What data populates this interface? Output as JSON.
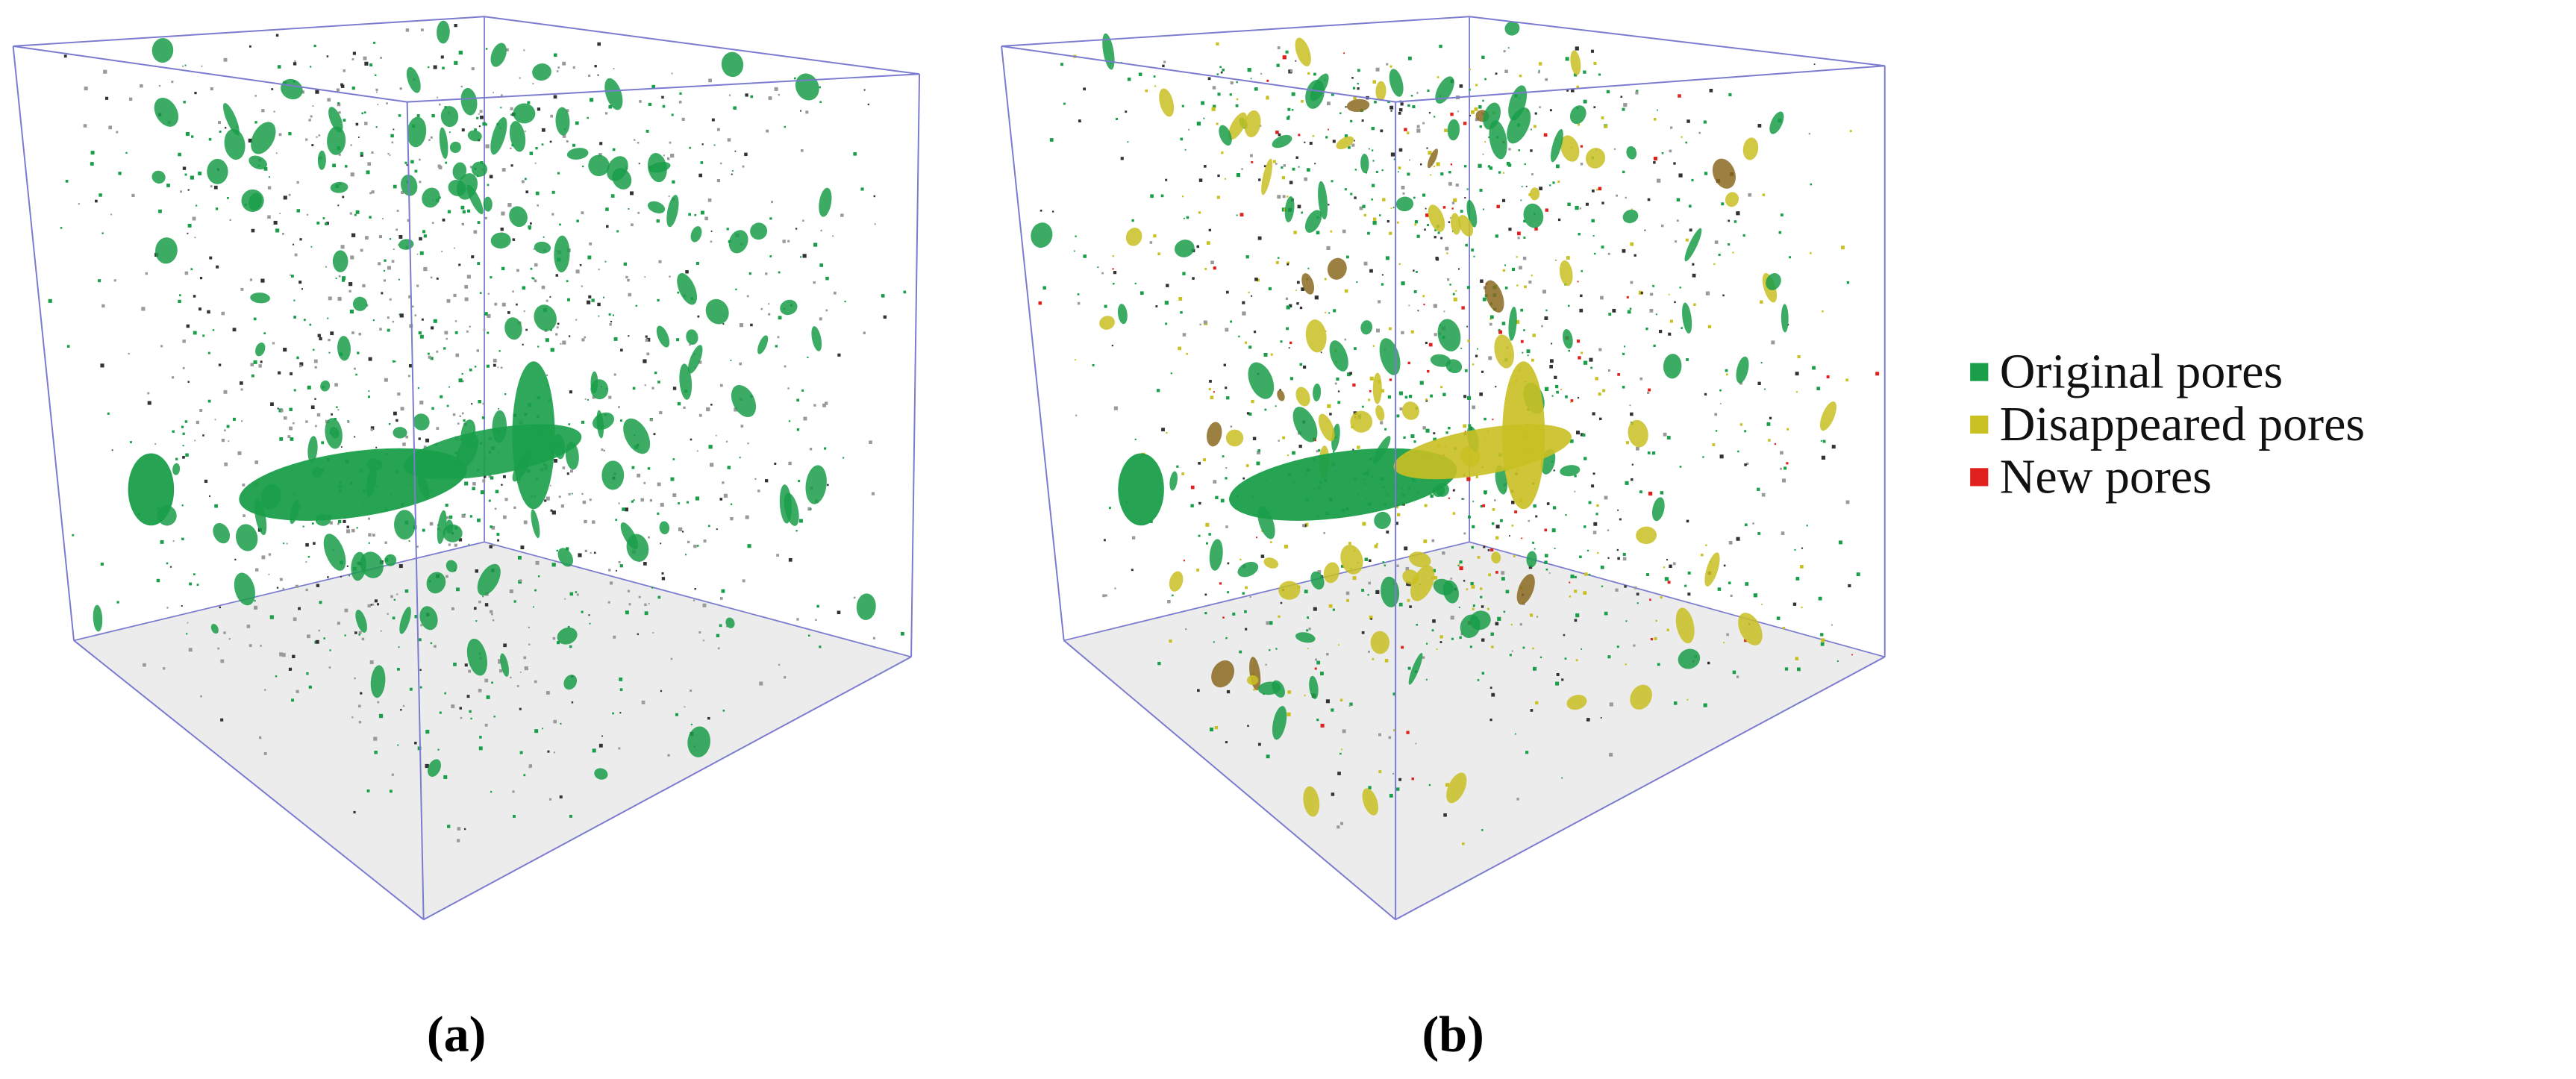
{
  "panels": [
    {
      "label": "(a)"
    },
    {
      "label": "(b)"
    }
  ],
  "legend": [
    {
      "label": "Original pores",
      "color": "#1a9e4a"
    },
    {
      "label": "Disappeared pores",
      "color": "#c9c022"
    },
    {
      "label": "New pores",
      "color": "#e0201c"
    }
  ]
}
